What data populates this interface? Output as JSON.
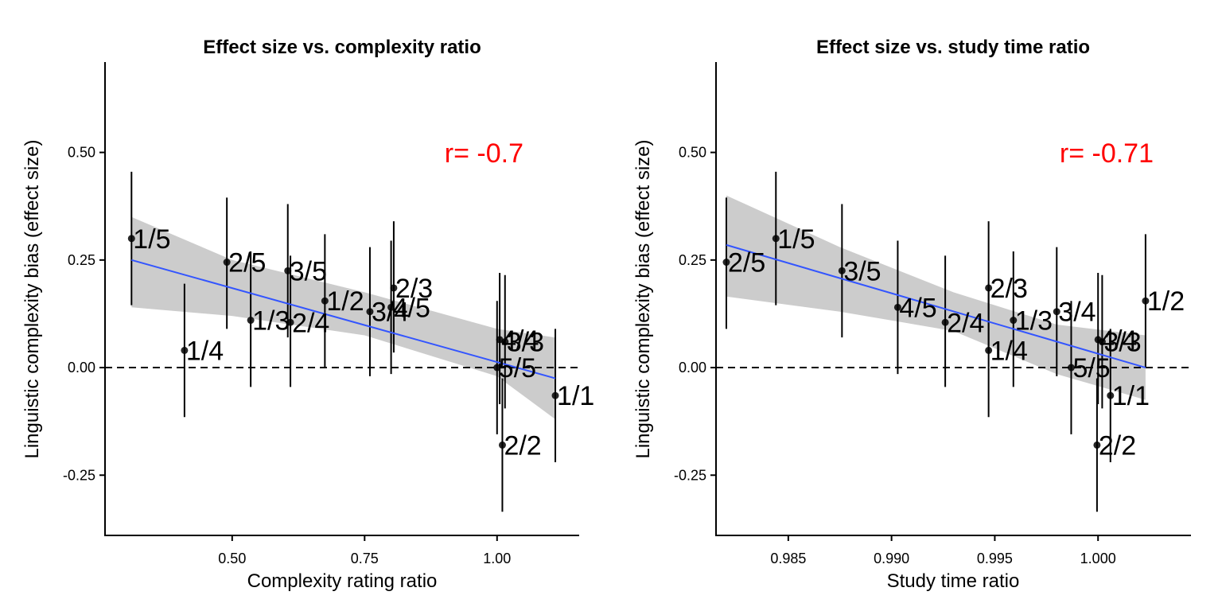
{
  "chart_data": [
    {
      "type": "scatter",
      "title": "Effect size vs. complexity ratio",
      "xlabel": "Complexity rating ratio",
      "ylabel": "Linguistic complexity bias (effect size)",
      "xlim": [
        0.26,
        1.155
      ],
      "ylim": [
        -0.39,
        0.71
      ],
      "xticks": [
        0.5,
        0.75,
        1.0
      ],
      "xtick_labels": [
        "0.50",
        "0.75",
        "1.00"
      ],
      "yticks": [
        -0.25,
        0.0,
        0.25,
        0.5
      ],
      "ytick_labels": [
        "-0.25",
        "0.00",
        "0.25",
        "0.50"
      ],
      "annotation": "r= -0.7",
      "annotation_color": "#ff0000",
      "fit_color": "#3355ff",
      "ribbon_color": "#cccccc",
      "fit": {
        "x": [
          0.31,
          1.11
        ],
        "y": [
          0.25,
          -0.025
        ]
      },
      "ribbon": {
        "x": [
          0.31,
          0.5,
          0.75,
          1.0,
          1.11
        ],
        "upper": [
          0.35,
          0.25,
          0.175,
          0.09,
          0.07
        ],
        "lower": [
          0.14,
          0.12,
          0.075,
          -0.02,
          -0.12
        ]
      },
      "points": [
        {
          "label": "1/5",
          "x": 0.31,
          "y": 0.3,
          "lo": 0.145,
          "hi": 0.455
        },
        {
          "label": "1/4",
          "x": 0.41,
          "y": 0.04,
          "lo": -0.115,
          "hi": 0.195
        },
        {
          "label": "2/5",
          "x": 0.49,
          "y": 0.245,
          "lo": 0.09,
          "hi": 0.395
        },
        {
          "label": "1/3",
          "x": 0.535,
          "y": 0.11,
          "lo": -0.045,
          "hi": 0.27
        },
        {
          "label": "3/5",
          "x": 0.605,
          "y": 0.225,
          "lo": 0.07,
          "hi": 0.38
        },
        {
          "label": "2/4",
          "x": 0.61,
          "y": 0.105,
          "lo": -0.045,
          "hi": 0.26
        },
        {
          "label": "1/2",
          "x": 0.675,
          "y": 0.155,
          "lo": 0.0,
          "hi": 0.31
        },
        {
          "label": "3/4",
          "x": 0.76,
          "y": 0.13,
          "lo": -0.02,
          "hi": 0.28
        },
        {
          "label": "4/5",
          "x": 0.8,
          "y": 0.14,
          "lo": -0.015,
          "hi": 0.295
        },
        {
          "label": "2/3",
          "x": 0.805,
          "y": 0.185,
          "lo": 0.035,
          "hi": 0.34
        },
        {
          "label": "5/5",
          "x": 1.0,
          "y": 0.0,
          "lo": -0.155,
          "hi": 0.155
        },
        {
          "label": "4/4",
          "x": 1.005,
          "y": 0.065,
          "lo": -0.085,
          "hi": 0.22
        },
        {
          "label": "3/3",
          "x": 1.015,
          "y": 0.06,
          "lo": -0.095,
          "hi": 0.215
        },
        {
          "label": "2/2",
          "x": 1.01,
          "y": -0.18,
          "lo": -0.335,
          "hi": -0.025
        },
        {
          "label": "1/1",
          "x": 1.11,
          "y": -0.065,
          "lo": -0.22,
          "hi": 0.09
        }
      ]
    },
    {
      "type": "scatter",
      "title": "Effect size vs. study time ratio",
      "xlabel": "Study time ratio",
      "ylabel": "Linguistic complexity bias (effect size)",
      "xlim": [
        0.9815,
        1.0045
      ],
      "ylim": [
        -0.39,
        0.71
      ],
      "xticks": [
        0.985,
        0.99,
        0.995,
        1.0
      ],
      "xtick_labels": [
        "0.985",
        "0.990",
        "0.995",
        "1.000"
      ],
      "yticks": [
        -0.25,
        0.0,
        0.25,
        0.5
      ],
      "ytick_labels": [
        "-0.25",
        "0.00",
        "0.25",
        "0.50"
      ],
      "annotation": "r= -0.71",
      "annotation_color": "#ff0000",
      "fit_color": "#3355ff",
      "ribbon_color": "#cccccc",
      "fit": {
        "x": [
          0.982,
          1.0023
        ],
        "y": [
          0.285,
          0.0
        ]
      },
      "ribbon": {
        "x": [
          0.982,
          0.9875,
          0.993,
          0.998,
          1.0023
        ],
        "upper": [
          0.4,
          0.28,
          0.175,
          0.1,
          0.075
        ],
        "lower": [
          0.165,
          0.13,
          0.085,
          -0.015,
          -0.075
        ]
      },
      "points": [
        {
          "label": "2/5",
          "x": 0.982,
          "y": 0.245,
          "lo": 0.09,
          "hi": 0.395
        },
        {
          "label": "1/5",
          "x": 0.9844,
          "y": 0.3,
          "lo": 0.145,
          "hi": 0.455
        },
        {
          "label": "3/5",
          "x": 0.9876,
          "y": 0.225,
          "lo": 0.07,
          "hi": 0.38
        },
        {
          "label": "4/5",
          "x": 0.9903,
          "y": 0.14,
          "lo": -0.015,
          "hi": 0.295
        },
        {
          "label": "2/4",
          "x": 0.9926,
          "y": 0.105,
          "lo": -0.045,
          "hi": 0.26
        },
        {
          "label": "2/3",
          "x": 0.9947,
          "y": 0.185,
          "lo": 0.035,
          "hi": 0.34
        },
        {
          "label": "1/4",
          "x": 0.9947,
          "y": 0.04,
          "lo": -0.115,
          "hi": 0.195
        },
        {
          "label": "1/3",
          "x": 0.9959,
          "y": 0.11,
          "lo": -0.045,
          "hi": 0.27
        },
        {
          "label": "3/4",
          "x": 0.998,
          "y": 0.13,
          "lo": -0.02,
          "hi": 0.28
        },
        {
          "label": "5/5",
          "x": 0.9987,
          "y": 0.0,
          "lo": -0.155,
          "hi": 0.155
        },
        {
          "label": "4/4",
          "x": 1.0,
          "y": 0.065,
          "lo": -0.085,
          "hi": 0.22
        },
        {
          "label": "3/3",
          "x": 1.0002,
          "y": 0.06,
          "lo": -0.095,
          "hi": 0.215
        },
        {
          "label": "2/2",
          "x": 0.99995,
          "y": -0.18,
          "lo": -0.335,
          "hi": -0.025
        },
        {
          "label": "1/1",
          "x": 1.0006,
          "y": -0.065,
          "lo": -0.22,
          "hi": 0.09
        },
        {
          "label": "1/2",
          "x": 1.0023,
          "y": 0.155,
          "lo": 0.0,
          "hi": 0.31
        }
      ]
    }
  ]
}
